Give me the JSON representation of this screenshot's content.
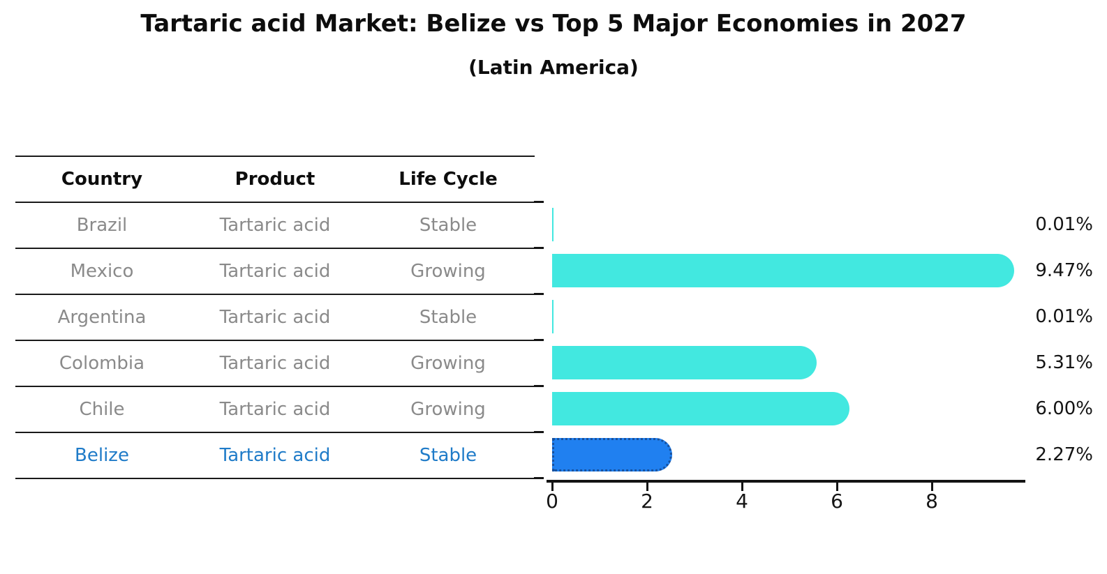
{
  "title": "Tartaric acid Market: Belize vs Top 5 Major Economies in 2027",
  "subtitle": "(Latin America)",
  "table": {
    "headers": [
      "Country",
      "Product",
      "Life Cycle"
    ],
    "rows": [
      {
        "country": "Brazil",
        "product": "Tartaric acid",
        "life_cycle": "Stable",
        "highlight": false
      },
      {
        "country": "Mexico",
        "product": "Tartaric acid",
        "life_cycle": "Growing",
        "highlight": false
      },
      {
        "country": "Argentina",
        "product": "Tartaric acid",
        "life_cycle": "Stable",
        "highlight": false
      },
      {
        "country": "Colombia",
        "product": "Tartaric acid",
        "life_cycle": "Growing",
        "highlight": false
      },
      {
        "country": "Chile",
        "product": "Tartaric acid",
        "life_cycle": "Growing",
        "highlight": false
      },
      {
        "country": "Belize",
        "product": "Tartaric acid",
        "life_cycle": "Stable",
        "highlight": true
      }
    ]
  },
  "chart_data": {
    "type": "bar",
    "orientation": "horizontal",
    "title": "Tartaric acid Market: Belize vs Top 5 Major Economies in 2027",
    "subtitle": "(Latin America)",
    "categories": [
      "Brazil",
      "Mexico",
      "Argentina",
      "Colombia",
      "Chile",
      "Belize"
    ],
    "values": [
      0.01,
      9.47,
      0.01,
      5.31,
      6.0,
      2.27
    ],
    "value_labels": [
      "0.01%",
      "9.47%",
      "0.01%",
      "5.31%",
      "6.00%",
      "2.27%"
    ],
    "xlabel": "",
    "ylabel": "",
    "xlim": [
      0,
      10
    ],
    "x_ticks": [
      0,
      2,
      4,
      6,
      8
    ],
    "grid": false,
    "legend": "none",
    "highlight_index": 5
  },
  "colors": {
    "bar_color": "#42e8e0",
    "highlight_bar_color": "#2080f0",
    "highlight_bar_border": "#17519e",
    "highlight_text": "#1f7bc8",
    "row_text": "#8a8a8a",
    "header_text": "#0d0d0d",
    "axis_color": "#141414"
  }
}
